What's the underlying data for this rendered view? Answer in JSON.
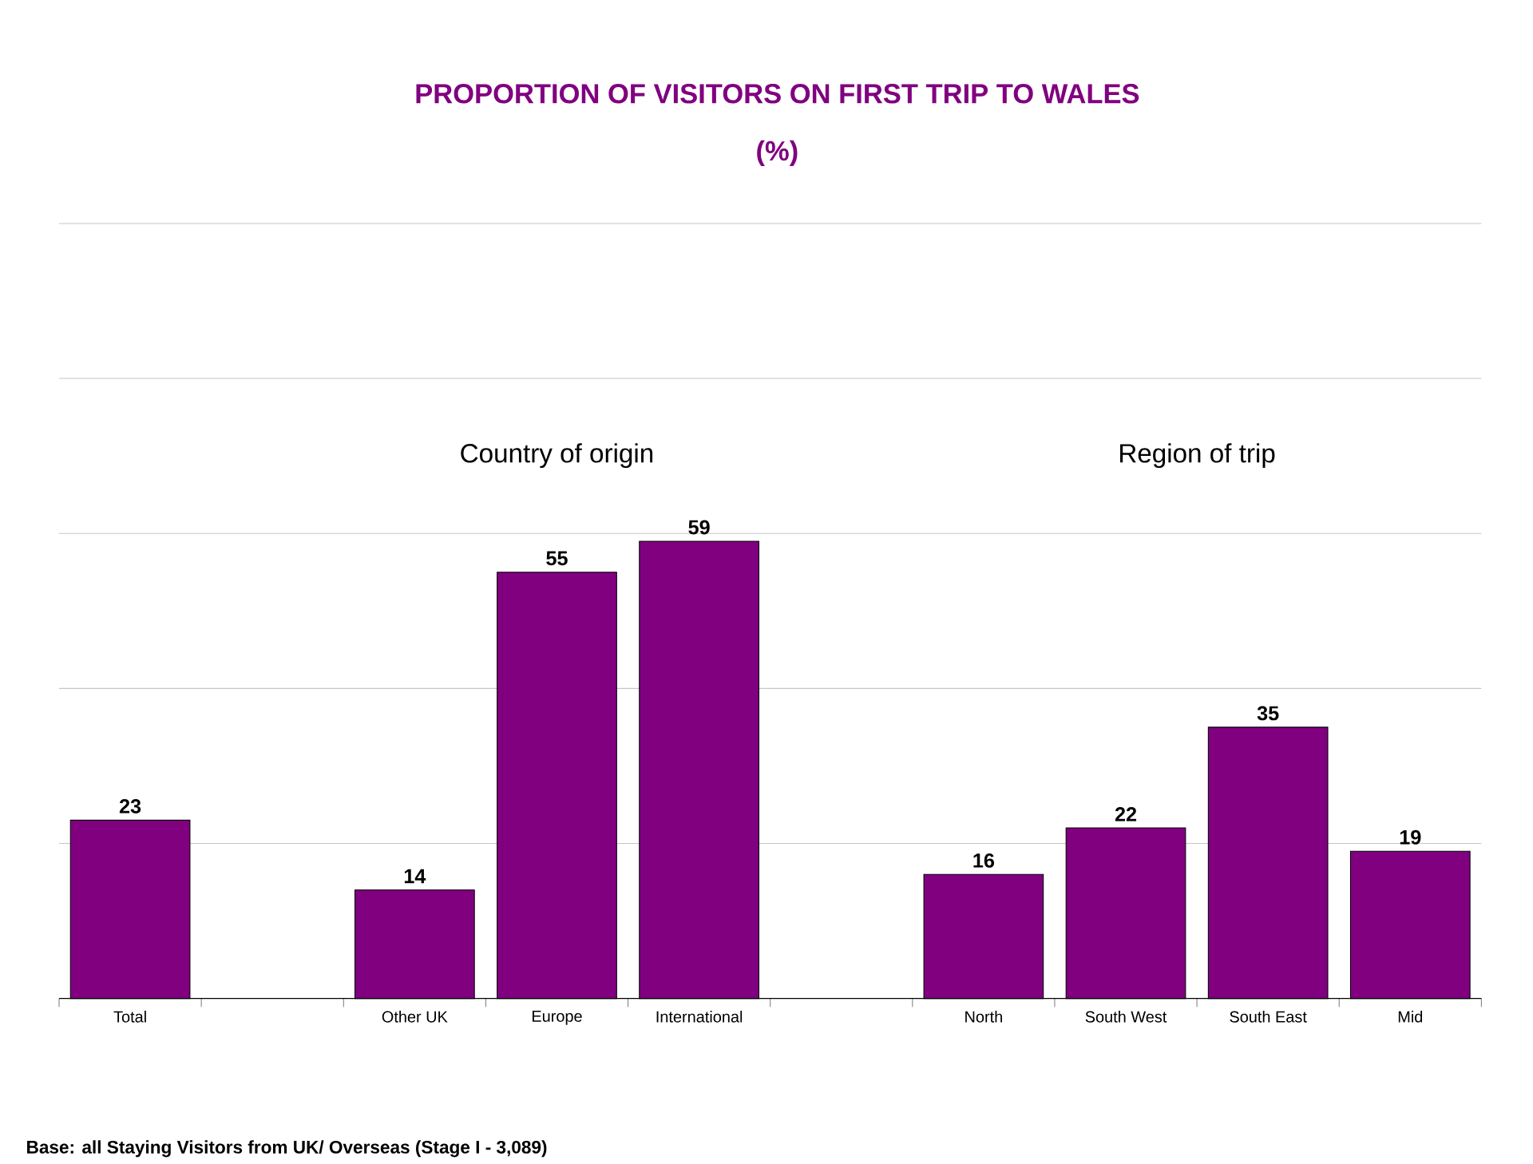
{
  "chart_data": {
    "type": "bar",
    "title": "PROPORTION OF VISITORS ON FIRST TRIP TO WALES",
    "subtitle": "(%)",
    "categories": [
      "Total",
      null,
      "Other UK",
      "Europe",
      "International",
      null,
      "North",
      "South West",
      "South East",
      "Mid"
    ],
    "values": [
      23,
      null,
      14,
      55,
      59,
      null,
      16,
      22,
      35,
      19
    ],
    "color": "#800080",
    "ylim": [
      0,
      100
    ],
    "yticks": [
      {
        "value": 20,
        "label": null
      },
      {
        "value": 40,
        "label": null
      },
      {
        "value": 60,
        "label": null
      },
      {
        "value": 80,
        "label": null
      },
      {
        "value": 100,
        "label": null
      }
    ],
    "tick_labels": "x",
    "grid": "y",
    "data_labels": true,
    "annotations": [
      "Country of origin",
      "Region of trip",
      "Base: all Staying Visitors from UK/ Overseas (Stage I - 3,089)"
    ]
  }
}
